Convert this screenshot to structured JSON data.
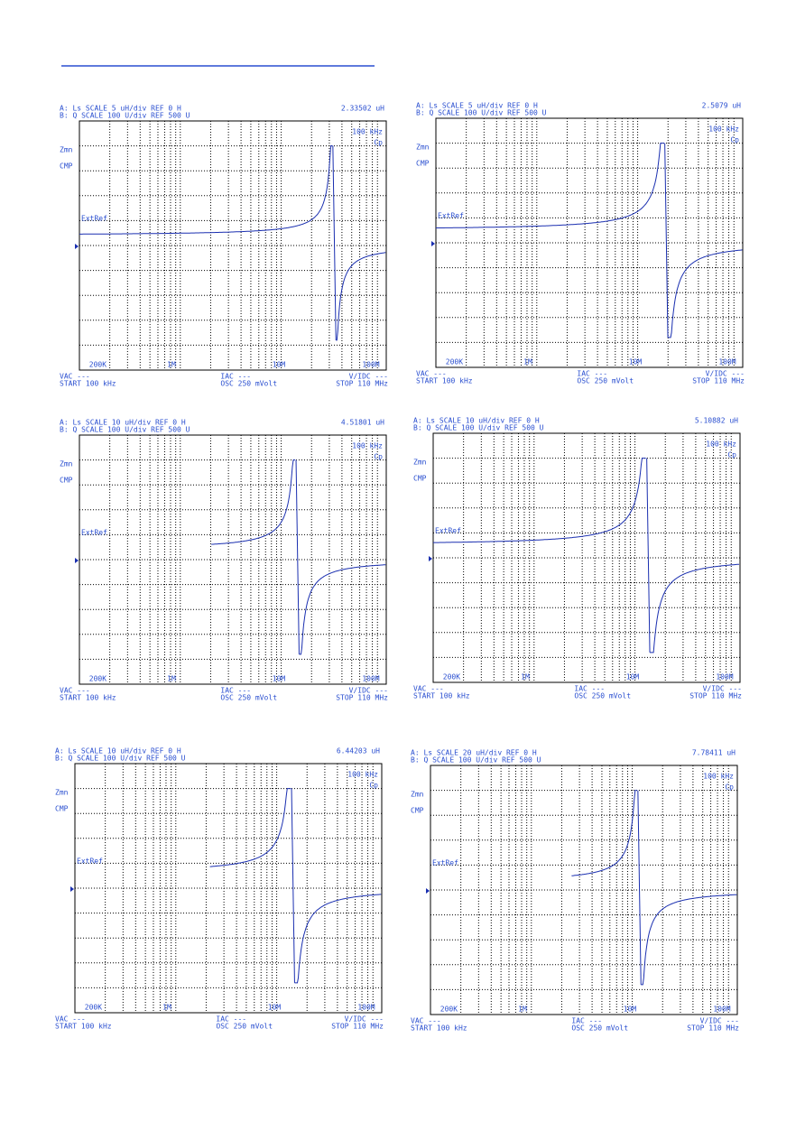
{
  "panels": [
    {
      "header_a": "A: Ls   SCALE    5 uH/div REF    0 H",
      "marker": "2.33502 uH",
      "header_b": "B: Q    SCALE   100 U/div REF  500 U",
      "freq": "100 kHz",
      "param": "Cp",
      "left_1": "Zmn",
      "left_2": "CMP",
      "ref": "ExtRef",
      "x_labels": [
        "200K",
        "1M",
        "10M",
        "100M"
      ],
      "foot_1": [
        "VAC ---",
        "IAC ---",
        "V/IDC ---"
      ],
      "foot_2": [
        "START 100 kHz",
        "OSC 250 mVolt",
        "STOP 110 MHz"
      ]
    },
    {
      "header_a": "A: Ls   SCALE    5 uH/div REF    0 H",
      "marker": "2.5079 uH",
      "header_b": "B: Q    SCALE   100 U/div REF  500 U",
      "freq": "100 kHz",
      "param": "Cp",
      "left_1": "Zmn",
      "left_2": "CMP",
      "ref": "ExtRef",
      "x_labels": [
        "200K",
        "1M",
        "10M",
        "100M"
      ],
      "foot_1": [
        "VAC ---",
        "IAC ---",
        "V/IDC ---"
      ],
      "foot_2": [
        "START 100 kHz",
        "OSC 250 mVolt",
        "STOP 110 MHz"
      ]
    },
    {
      "header_a": "A: Ls   SCALE   10 uH/div REF    0 H",
      "marker": "4.51801 uH",
      "header_b": "B: Q    SCALE   100 U/div REF  500 U",
      "freq": "100 kHz",
      "param": "Cp",
      "left_1": "Zmn",
      "left_2": "CMP",
      "ref": "ExtRef",
      "x_labels": [
        "200K",
        "1M",
        "10M",
        "100M"
      ],
      "foot_1": [
        "VAC ---",
        "IAC ---",
        "V/IDC ---"
      ],
      "foot_2": [
        "START 100 kHz",
        "OSC 250 mVolt",
        "STOP 110 MHz"
      ]
    },
    {
      "header_a": "A: Ls   SCALE   10 uH/div REF    0 H",
      "marker": "5.10882 uH",
      "header_b": "B: Q    SCALE   100 U/div REF  500 U",
      "freq": "100 kHz",
      "param": "Cp",
      "left_1": "Zmn",
      "left_2": "CMP",
      "ref": "ExtRef",
      "x_labels": [
        "200K",
        "1M",
        "10M",
        "100M"
      ],
      "foot_1": [
        "VAC ---",
        "IAC ---",
        "V/IDC ---"
      ],
      "foot_2": [
        "START 100 kHz",
        "OSC 250 mVolt",
        "STOP 110 MHz"
      ]
    },
    {
      "header_a": "A: Ls   SCALE   10 uH/div REF    0 H",
      "marker": "6.44203 uH",
      "header_b": "B: Q    SCALE   100 U/div REF  500 U",
      "freq": "100 kHz",
      "param": "Cp",
      "left_1": "Zmn",
      "left_2": "CMP",
      "ref": "ExtRef",
      "x_labels": [
        "200K",
        "1M",
        "10M",
        "100M"
      ],
      "foot_1": [
        "VAC ---",
        "IAC ---",
        "V/IDC ---"
      ],
      "foot_2": [
        "START 100 kHz",
        "OSC 250 mVolt",
        "STOP 110 MHz"
      ]
    },
    {
      "header_a": "A: Ls   SCALE   20 uH/div REF    0 H",
      "marker": "7.78411 uH",
      "header_b": "B: Q    SCALE   100 U/div REF  500 U",
      "freq": "100 kHz",
      "param": "Cp",
      "left_1": "Zmn",
      "left_2": "CMP",
      "ref": "ExtRef",
      "x_labels": [
        "200K",
        "1M",
        "10M",
        "100M"
      ],
      "foot_1": [
        "VAC ---",
        "IAC ---",
        "V/IDC ---"
      ],
      "foot_2": [
        "START 100 kHz",
        "OSC 250 mVolt",
        "STOP 110 MHz"
      ]
    }
  ]
}
